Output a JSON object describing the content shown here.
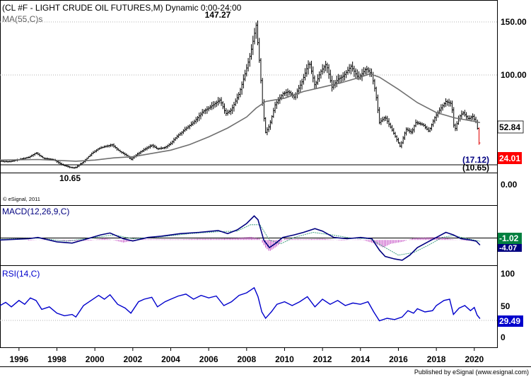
{
  "chart_data": [
    {
      "panel": "price",
      "type": "ohlc-bar",
      "title": "(CL #F - LIGHT CRUDE OIL FUTURES,M) Dynamic 0:00-24:00",
      "indicator_label": "MA(55,C)s",
      "copyright": "© eSignal, 2011",
      "ylim": [
        0,
        160
      ],
      "yticks": [
        "150.00",
        "100.00",
        "0.00"
      ],
      "high_annotation": "147.27",
      "low_annotation": "10.65",
      "last_price_label": "24.01",
      "ma_value_label": "52.84",
      "level_labels": [
        "(17.12)",
        "(10.65)"
      ],
      "level_values": [
        17.12,
        10.65
      ],
      "close": [
        [
          1995.0,
          18.0
        ],
        [
          1995.5,
          17.5
        ],
        [
          1996.0,
          19.5
        ],
        [
          1996.5,
          21.5
        ],
        [
          1996.9,
          25.5
        ],
        [
          1997.3,
          20.5
        ],
        [
          1997.8,
          19.5
        ],
        [
          1998.3,
          14.5
        ],
        [
          1998.8,
          12.0
        ],
        [
          1999.0,
          12.5
        ],
        [
          1999.4,
          17.5
        ],
        [
          1999.8,
          24.5
        ],
        [
          2000.2,
          29.5
        ],
        [
          2000.6,
          31.5
        ],
        [
          2000.9,
          33.0
        ],
        [
          2001.3,
          27.0
        ],
        [
          2001.7,
          23.0
        ],
        [
          2001.9,
          19.5
        ],
        [
          2002.2,
          24.0
        ],
        [
          2002.6,
          28.5
        ],
        [
          2003.0,
          32.5
        ],
        [
          2003.3,
          29.0
        ],
        [
          2003.7,
          30.5
        ],
        [
          2004.0,
          34.0
        ],
        [
          2004.3,
          40.0
        ],
        [
          2004.8,
          47.5
        ],
        [
          2005.2,
          53.0
        ],
        [
          2005.7,
          63.0
        ],
        [
          2006.0,
          66.0
        ],
        [
          2006.6,
          73.5
        ],
        [
          2006.9,
          61.0
        ],
        [
          2007.2,
          64.5
        ],
        [
          2007.6,
          79.0
        ],
        [
          2007.9,
          96.0
        ],
        [
          2008.2,
          115.0
        ],
        [
          2008.5,
          141.0
        ],
        [
          2008.7,
          103.0
        ],
        [
          2008.85,
          67.0
        ],
        [
          2009.0,
          44.0
        ],
        [
          2009.2,
          50.0
        ],
        [
          2009.5,
          69.0
        ],
        [
          2009.9,
          79.0
        ],
        [
          2010.2,
          81.0
        ],
        [
          2010.5,
          76.0
        ],
        [
          2010.9,
          89.0
        ],
        [
          2011.3,
          108.0
        ],
        [
          2011.6,
          86.0
        ],
        [
          2011.9,
          99.0
        ],
        [
          2012.2,
          106.0
        ],
        [
          2012.5,
          85.0
        ],
        [
          2012.8,
          92.0
        ],
        [
          2013.1,
          95.0
        ],
        [
          2013.5,
          104.0
        ],
        [
          2013.9,
          93.0
        ],
        [
          2014.3,
          102.0
        ],
        [
          2014.6,
          96.0
        ],
        [
          2014.8,
          80.0
        ],
        [
          2015.0,
          53.0
        ],
        [
          2015.3,
          58.0
        ],
        [
          2015.7,
          45.0
        ],
        [
          2015.9,
          38.0
        ],
        [
          2016.1,
          31.0
        ],
        [
          2016.4,
          47.0
        ],
        [
          2016.7,
          44.0
        ],
        [
          2016.9,
          53.0
        ],
        [
          2017.3,
          51.0
        ],
        [
          2017.6,
          45.0
        ],
        [
          2017.9,
          57.0
        ],
        [
          2018.2,
          65.0
        ],
        [
          2018.5,
          72.0
        ],
        [
          2018.8,
          70.0
        ],
        [
          2018.95,
          45.0
        ],
        [
          2019.2,
          58.0
        ],
        [
          2019.4,
          62.0
        ],
        [
          2019.7,
          56.0
        ],
        [
          2019.9,
          59.0
        ],
        [
          2020.1,
          53.0
        ],
        [
          2020.2,
          45.0
        ],
        [
          2020.3,
          24.0
        ]
      ],
      "ma55": [
        [
          1995.0,
          19.0
        ],
        [
          1997.0,
          19.5
        ],
        [
          1999.0,
          18.0
        ],
        [
          2000.0,
          19.0
        ],
        [
          2001.0,
          21.0
        ],
        [
          2002.0,
          22.0
        ],
        [
          2003.0,
          25.0
        ],
        [
          2004.0,
          28.0
        ],
        [
          2005.0,
          33.0
        ],
        [
          2006.0,
          40.0
        ],
        [
          2007.0,
          48.0
        ],
        [
          2008.0,
          58.0
        ],
        [
          2008.5,
          66.0
        ],
        [
          2009.0,
          72.0
        ],
        [
          2010.0,
          75.0
        ],
        [
          2011.0,
          81.0
        ],
        [
          2012.0,
          85.0
        ],
        [
          2013.0,
          89.0
        ],
        [
          2014.0,
          94.0
        ],
        [
          2014.5,
          97.0
        ],
        [
          2015.0,
          94.0
        ],
        [
          2016.0,
          83.0
        ],
        [
          2017.0,
          71.0
        ],
        [
          2018.0,
          62.0
        ],
        [
          2019.0,
          57.0
        ],
        [
          2020.0,
          54.0
        ],
        [
          2020.3,
          52.84
        ]
      ]
    },
    {
      "panel": "macd",
      "type": "line+histogram",
      "title": "MACD(12,26,9,C)",
      "value_labels": [
        "-1.02",
        "-4.07"
      ],
      "ylim": [
        -20,
        27
      ],
      "macd": [
        [
          1995.0,
          0.0
        ],
        [
          1996.5,
          1.0
        ],
        [
          1997.0,
          2.0
        ],
        [
          1998.0,
          -1.5
        ],
        [
          1998.8,
          -2.5
        ],
        [
          1999.5,
          0.5
        ],
        [
          2000.3,
          4.0
        ],
        [
          2000.8,
          5.5
        ],
        [
          2001.5,
          1.0
        ],
        [
          2002.0,
          -0.8
        ],
        [
          2002.8,
          2.0
        ],
        [
          2003.5,
          3.0
        ],
        [
          2004.5,
          5.0
        ],
        [
          2005.5,
          6.0
        ],
        [
          2006.5,
          7.5
        ],
        [
          2007.0,
          5.0
        ],
        [
          2007.5,
          8.0
        ],
        [
          2008.0,
          13.0
        ],
        [
          2008.4,
          19.0
        ],
        [
          2008.6,
          16.0
        ],
        [
          2008.9,
          0.0
        ],
        [
          2009.2,
          -6.0
        ],
        [
          2009.5,
          -3.0
        ],
        [
          2009.9,
          2.0
        ],
        [
          2010.5,
          4.0
        ],
        [
          2011.0,
          6.0
        ],
        [
          2011.6,
          9.0
        ],
        [
          2012.0,
          7.0
        ],
        [
          2012.6,
          2.0
        ],
        [
          2013.3,
          1.0
        ],
        [
          2014.0,
          2.0
        ],
        [
          2014.6,
          1.0
        ],
        [
          2015.0,
          -8.0
        ],
        [
          2015.3,
          -13.0
        ],
        [
          2015.8,
          -15.0
        ],
        [
          2016.2,
          -16.0
        ],
        [
          2016.6,
          -12.0
        ],
        [
          2017.0,
          -6.0
        ],
        [
          2017.5,
          -2.0
        ],
        [
          2018.0,
          2.0
        ],
        [
          2018.5,
          6.0
        ],
        [
          2018.9,
          4.0
        ],
        [
          2019.3,
          1.0
        ],
        [
          2019.8,
          0.0
        ],
        [
          2020.1,
          -1.0
        ],
        [
          2020.3,
          -4.07
        ]
      ],
      "signal": [
        [
          1995.0,
          0.5
        ],
        [
          1997.0,
          1.5
        ],
        [
          1998.5,
          -1.0
        ],
        [
          2000.0,
          2.0
        ],
        [
          2001.0,
          4.0
        ],
        [
          2002.0,
          1.0
        ],
        [
          2003.5,
          2.5
        ],
        [
          2005.0,
          5.0
        ],
        [
          2006.5,
          6.5
        ],
        [
          2007.5,
          7.0
        ],
        [
          2008.2,
          12.0
        ],
        [
          2008.7,
          12.0
        ],
        [
          2009.2,
          0.0
        ],
        [
          2009.8,
          -3.0
        ],
        [
          2010.5,
          2.0
        ],
        [
          2011.5,
          6.0
        ],
        [
          2012.5,
          4.0
        ],
        [
          2013.5,
          1.5
        ],
        [
          2014.5,
          1.0
        ],
        [
          2015.3,
          -6.0
        ],
        [
          2016.0,
          -12.0
        ],
        [
          2016.8,
          -10.0
        ],
        [
          2017.6,
          -4.0
        ],
        [
          2018.3,
          2.0
        ],
        [
          2018.9,
          3.5
        ],
        [
          2019.5,
          1.5
        ],
        [
          2020.3,
          -1.02
        ]
      ],
      "histogram": [
        [
          1996.5,
          -0.5
        ],
        [
          1997.5,
          0.5
        ],
        [
          1998.5,
          -1.0
        ],
        [
          1999.8,
          -0.5
        ],
        [
          2000.5,
          1.5
        ],
        [
          2001.5,
          -2.0
        ],
        [
          2002.5,
          0.5
        ],
        [
          2003.5,
          0.5
        ],
        [
          2004.5,
          0.5
        ],
        [
          2005.5,
          1.0
        ],
        [
          2006.5,
          1.0
        ],
        [
          2007.5,
          1.5
        ],
        [
          2008.2,
          2.5
        ],
        [
          2008.7,
          1.0
        ],
        [
          2009.0,
          -6.0
        ],
        [
          2009.2,
          -9.0
        ],
        [
          2009.6,
          -5.0
        ],
        [
          2010.0,
          1.0
        ],
        [
          2011.0,
          0.5
        ],
        [
          2012.0,
          1.0
        ],
        [
          2013.0,
          -0.5
        ],
        [
          2014.0,
          0.5
        ],
        [
          2014.8,
          -3.0
        ],
        [
          2015.2,
          -6.0
        ],
        [
          2015.6,
          -3.0
        ],
        [
          2016.2,
          -1.5
        ],
        [
          2016.8,
          1.5
        ],
        [
          2017.6,
          2.0
        ],
        [
          2018.2,
          2.5
        ],
        [
          2018.8,
          0.5
        ],
        [
          2019.5,
          -0.5
        ],
        [
          2020.1,
          -0.8
        ]
      ]
    },
    {
      "panel": "rsi",
      "type": "line",
      "title": "RSI(14,C)",
      "value_label": "29.49",
      "ylim": [
        0,
        100
      ],
      "yticks": [
        "100",
        "50",
        "0"
      ],
      "rsi": [
        [
          1995.0,
          50
        ],
        [
          1995.3,
          55
        ],
        [
          1995.6,
          48
        ],
        [
          1996.0,
          58
        ],
        [
          1996.3,
          52
        ],
        [
          1996.6,
          62
        ],
        [
          1996.9,
          58
        ],
        [
          1997.2,
          44
        ],
        [
          1997.6,
          48
        ],
        [
          1998.0,
          38
        ],
        [
          1998.4,
          34
        ],
        [
          1998.8,
          36
        ],
        [
          1999.0,
          32
        ],
        [
          1999.4,
          50
        ],
        [
          1999.8,
          58
        ],
        [
          2000.2,
          66
        ],
        [
          2000.5,
          60
        ],
        [
          2000.8,
          67
        ],
        [
          2001.2,
          52
        ],
        [
          2001.6,
          46
        ],
        [
          2001.9,
          38
        ],
        [
          2002.3,
          56
        ],
        [
          2002.6,
          60
        ],
        [
          2003.0,
          63
        ],
        [
          2003.3,
          48
        ],
        [
          2003.7,
          56
        ],
        [
          2004.0,
          60
        ],
        [
          2004.4,
          65
        ],
        [
          2004.8,
          68
        ],
        [
          2005.2,
          60
        ],
        [
          2005.6,
          66
        ],
        [
          2006.0,
          62
        ],
        [
          2006.4,
          65
        ],
        [
          2006.8,
          50
        ],
        [
          2007.2,
          56
        ],
        [
          2007.6,
          66
        ],
        [
          2008.0,
          70
        ],
        [
          2008.4,
          78
        ],
        [
          2008.6,
          64
        ],
        [
          2008.8,
          40
        ],
        [
          2009.0,
          30
        ],
        [
          2009.3,
          40
        ],
        [
          2009.6,
          52
        ],
        [
          2010.0,
          56
        ],
        [
          2010.4,
          50
        ],
        [
          2010.8,
          56
        ],
        [
          2011.2,
          64
        ],
        [
          2011.6,
          48
        ],
        [
          2012.0,
          60
        ],
        [
          2012.4,
          52
        ],
        [
          2012.8,
          58
        ],
        [
          2013.2,
          50
        ],
        [
          2013.6,
          54
        ],
        [
          2014.0,
          52
        ],
        [
          2014.4,
          56
        ],
        [
          2014.7,
          40
        ],
        [
          2015.0,
          26
        ],
        [
          2015.4,
          30
        ],
        [
          2015.8,
          28
        ],
        [
          2016.2,
          32
        ],
        [
          2016.5,
          42
        ],
        [
          2016.8,
          38
        ],
        [
          2017.0,
          45
        ],
        [
          2017.4,
          40
        ],
        [
          2017.8,
          42
        ],
        [
          2018.0,
          50
        ],
        [
          2018.4,
          58
        ],
        [
          2018.7,
          60
        ],
        [
          2018.9,
          36
        ],
        [
          2019.2,
          46
        ],
        [
          2019.5,
          50
        ],
        [
          2019.8,
          42
        ],
        [
          2020.0,
          47
        ],
        [
          2020.15,
          35
        ],
        [
          2020.3,
          29.49
        ]
      ]
    }
  ],
  "x_axis": {
    "range": [
      1995,
      2021.2
    ],
    "ticks": [
      "1996",
      "1998",
      "2000",
      "2002",
      "2004",
      "2006",
      "2008",
      "2010",
      "2012",
      "2014",
      "2016",
      "2018",
      "2020"
    ]
  },
  "footer": "Published by eSignal (www.esignal.com)",
  "colors": {
    "price_bars": "#000000",
    "last_bars": "#e00000",
    "ma_line": "#707070",
    "macd_line": "#000080",
    "signal_line": "#40a080",
    "histogram": "#c040c0",
    "rsi_line": "#0000cc",
    "price_label_bg": "#ff0000",
    "rsi_label_bg": "#0000cc",
    "macd_label_bg": "#008040"
  }
}
